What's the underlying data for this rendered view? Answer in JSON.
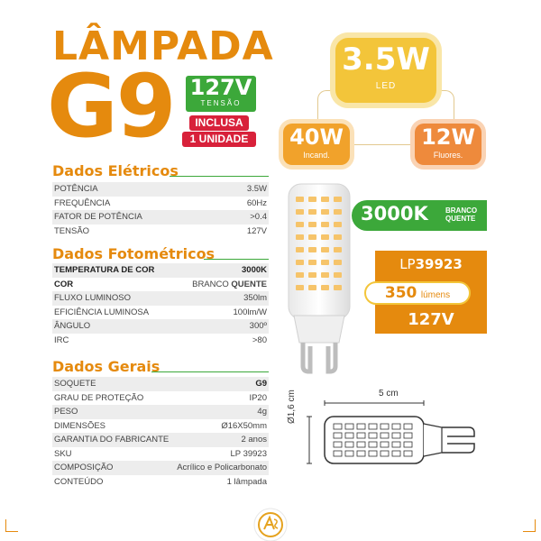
{
  "title": {
    "line1": "LÂMPADA",
    "line2": "G9"
  },
  "voltage_badge": {
    "value": "127V",
    "label": "TENSÃO"
  },
  "included": {
    "line1": "INCLUSA",
    "line2": "1 UNIDADE"
  },
  "power_badges": {
    "main": {
      "value": "3.5W",
      "label": "LED"
    },
    "incand": {
      "value": "40W",
      "label": "Incand."
    },
    "fluores": {
      "value": "12W",
      "label": "Fluores."
    }
  },
  "color_temp": {
    "value": "3000K",
    "label_line1": "BRANCO",
    "label_line2": "QUENTE"
  },
  "sku_panel": {
    "prefix": "LP",
    "code": "39923",
    "lumens": "350",
    "lumens_unit": "lúmens",
    "voltage": "127V"
  },
  "dimensions": {
    "width": "5 cm",
    "height": "Ø1,6 cm"
  },
  "sections": {
    "eletricos": {
      "title": "Dados Elétricos",
      "rows": [
        {
          "k": "POTÊNCIA",
          "v": "3.5W"
        },
        {
          "k": "FREQUÊNCIA",
          "v": "60Hz"
        },
        {
          "k": "FATOR DE POTÊNCIA",
          "v": ">0.4"
        },
        {
          "k": "TENSÃO",
          "v": "127V"
        }
      ]
    },
    "fotometricos": {
      "title": "Dados Fotométricos",
      "rows": [
        {
          "k": "TEMPERATURA DE COR",
          "v": "3000K"
        },
        {
          "k": "COR",
          "v_pre": "BRANCO",
          "v": "QUENTE"
        },
        {
          "k": "FLUXO LUMINOSO",
          "v": "350lm"
        },
        {
          "k": "EFICIÊNCIA LUMINOSA",
          "v": "100lm/W"
        },
        {
          "k": "ÂNGULO",
          "v": "300º"
        },
        {
          "k": "IRC",
          "v": ">80"
        }
      ]
    },
    "gerais": {
      "title": "Dados Gerais",
      "rows": [
        {
          "k": "SOQUETE",
          "v": "G9"
        },
        {
          "k": "GRAU DE PROTEÇÃO",
          "v": "IP20"
        },
        {
          "k": "PESO",
          "v": "4g"
        },
        {
          "k": "DIMENSÕES",
          "v": "Ø16X50mm"
        },
        {
          "k": "GARANTIA DO FABRICANTE",
          "v": "2 anos"
        },
        {
          "k": "SKU",
          "v": "LP 39923"
        },
        {
          "k": "COMPOSIÇÃO",
          "v": "Acrílico e Policarbonato"
        },
        {
          "k": "CONTEÚDO",
          "v": "1 lâmpada"
        }
      ]
    }
  },
  "colors": {
    "orange": "#E58A0E",
    "green": "#3CA83A",
    "red": "#D8213A",
    "yellow": "#F3C53A"
  },
  "icons": [
    "led-bulb-photo-icon",
    "bulb-diagram-icon",
    "brand-logo-icon"
  ]
}
